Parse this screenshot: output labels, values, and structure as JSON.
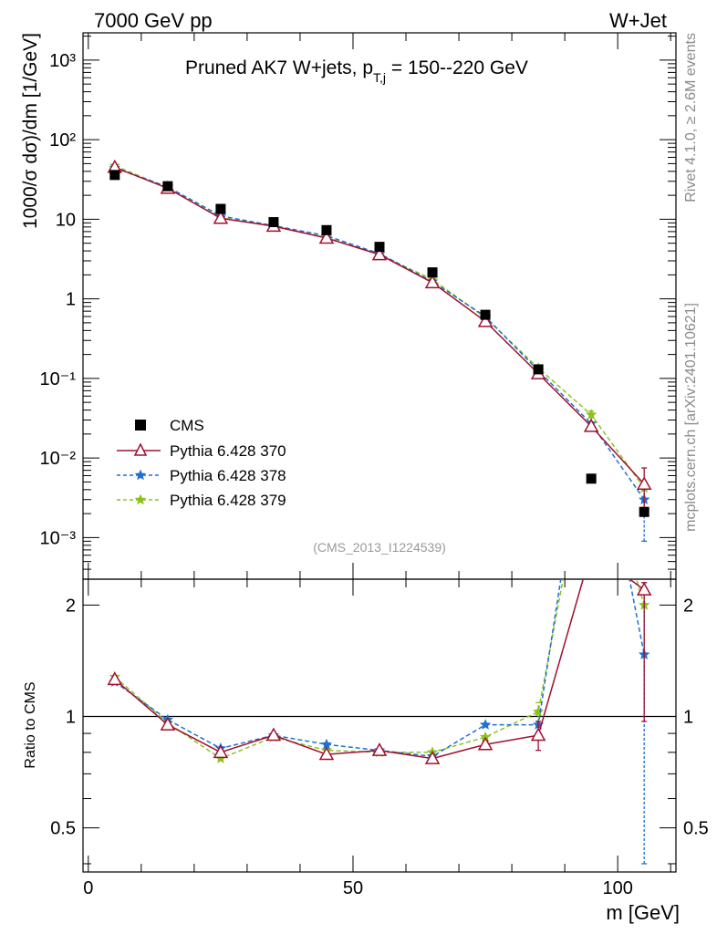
{
  "header": {
    "left": "7000 GeV pp",
    "right": "W+Jet"
  },
  "side_labels": {
    "rivet": "Rivet 4.1.0, ≥ 2.6M events",
    "mcplots": "mcplots.cern.ch [arXiv:2401.10621]"
  },
  "chart_data": {
    "type": "scatter",
    "title_main": "Pruned AK7 W+jets, p",
    "title_sub": "T,j",
    "title_tail": " = 150--220 GeV",
    "analysis_label": "(CMS_2013_I1224539)",
    "xlabel": "m [GeV]",
    "ylabel_top": "1000/σ  dσ)/dm [1/GeV]",
    "ylabel_bottom": "Ratio to CMS",
    "xlim": [
      -1,
      111
    ],
    "xticks": [
      0,
      50,
      100
    ],
    "xtick_labels": [
      "0",
      "50",
      "100"
    ],
    "top_panel": {
      "yscale": "log",
      "ylim": [
        0.0003,
        2200
      ],
      "yticks": [
        0.001,
        0.01,
        0.1,
        1,
        10,
        100,
        1000
      ],
      "ytick_labels": [
        "10⁻³",
        "10⁻²",
        "10⁻¹",
        "1",
        "10",
        "10²",
        "10³"
      ]
    },
    "bottom_panel": {
      "yscale": "log",
      "ylim": [
        0.38,
        2.35
      ],
      "yticks": [
        0.5,
        1,
        2
      ],
      "ytick_labels": [
        "0.5",
        "1",
        "2"
      ],
      "reference_line": 1
    },
    "x": [
      5,
      15,
      25,
      35,
      45,
      55,
      65,
      75,
      85,
      95,
      105
    ],
    "series": [
      {
        "name": "CMS",
        "color": "#000000",
        "marker": "square",
        "values": [
          36,
          26,
          13.5,
          9.2,
          7.3,
          4.5,
          2.15,
          0.63,
          0.13,
          0.0055,
          0.0021
        ],
        "ratio": [
          1,
          1,
          1,
          1,
          1,
          1,
          1,
          1,
          1,
          1,
          1
        ]
      },
      {
        "name": "Pythia 6.428 370",
        "color": "#a01030",
        "marker": "open-triangle",
        "values": [
          45,
          24.5,
          10.3,
          8.2,
          5.8,
          3.6,
          1.6,
          0.52,
          0.115,
          0.025,
          0.0047
        ],
        "ratio": [
          1.26,
          0.95,
          0.8,
          0.89,
          0.79,
          0.81,
          0.77,
          0.84,
          0.89,
          2.8,
          2.2
        ],
        "err_low": [
          null,
          null,
          null,
          null,
          null,
          null,
          null,
          null,
          null,
          null,
          0.0024
        ],
        "err_high": [
          null,
          null,
          null,
          null,
          null,
          null,
          null,
          null,
          null,
          null,
          0.0075
        ],
        "ratio_err_low": [
          null,
          null,
          null,
          null,
          null,
          null,
          null,
          0.82,
          0.81,
          null,
          0.97
        ],
        "ratio_err_high": [
          null,
          null,
          null,
          null,
          null,
          null,
          null,
          0.86,
          0.97,
          null,
          2.3
        ]
      },
      {
        "name": "Pythia 6.428 378",
        "color": "#1f6fd0",
        "marker": "star",
        "dashed": true,
        "values": [
          44,
          25.5,
          11,
          8.3,
          6.2,
          3.7,
          1.65,
          0.6,
          0.125,
          0.027,
          0.003
        ],
        "ratio": [
          1.24,
          0.98,
          0.82,
          0.89,
          0.84,
          0.81,
          0.78,
          0.95,
          0.95,
          8.0,
          1.47
        ],
        "err_low": [
          null,
          null,
          null,
          null,
          null,
          null,
          null,
          null,
          null,
          null,
          0.0009
        ],
        "err_high": [
          null,
          null,
          null,
          null,
          null,
          null,
          null,
          null,
          null,
          null,
          0.0045
        ],
        "ratio_err_low": [
          null,
          null,
          null,
          null,
          null,
          null,
          null,
          null,
          null,
          null,
          0.4
        ],
        "ratio_err_high": [
          null,
          null,
          null,
          null,
          null,
          null,
          null,
          null,
          null,
          null,
          2.3
        ]
      },
      {
        "name": "Pythia 6.428 379",
        "color": "#8cc21e",
        "marker": "star",
        "dashed": true,
        "values": [
          47,
          25,
          10.5,
          8.1,
          5.9,
          3.6,
          1.75,
          0.58,
          0.135,
          0.035,
          0.0042
        ],
        "ratio": [
          1.28,
          0.96,
          0.77,
          0.88,
          0.81,
          0.8,
          0.8,
          0.88,
          1.03,
          6.0,
          2.0
        ],
        "err_low": [
          null,
          null,
          null,
          null,
          null,
          null,
          null,
          null,
          null,
          0.032,
          null
        ],
        "err_high": [
          null,
          null,
          null,
          null,
          null,
          null,
          null,
          null,
          null,
          0.039,
          null
        ],
        "ratio_err_low": [
          null,
          null,
          null,
          null,
          null,
          null,
          null,
          null,
          0.97,
          null,
          null
        ],
        "ratio_err_high": [
          null,
          null,
          null,
          null,
          null,
          null,
          null,
          null,
          1.09,
          null,
          null
        ]
      }
    ]
  }
}
